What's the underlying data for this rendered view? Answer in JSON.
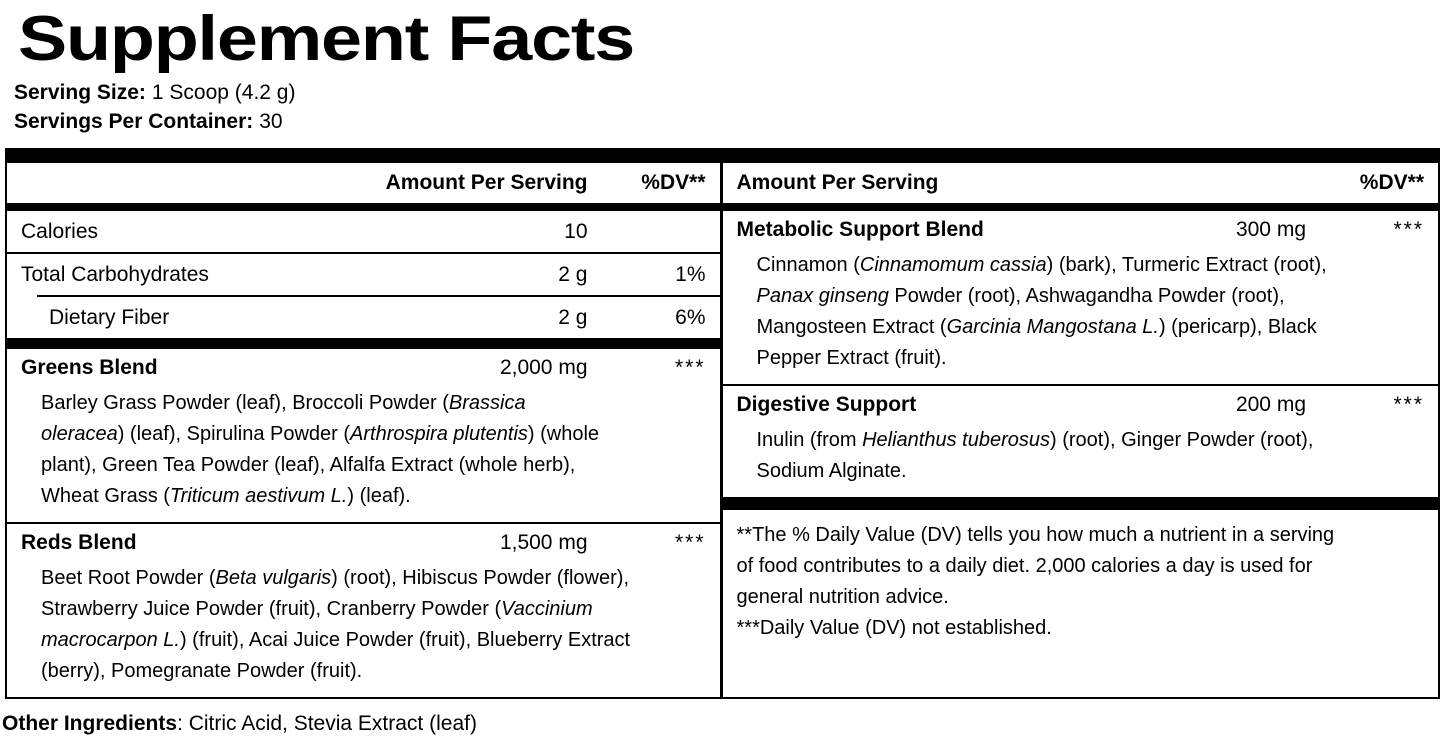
{
  "title": "Supplement Facts",
  "serving_info": {
    "size_label": "Serving Size:",
    "size_value": "1 Scoop (4.2 g)",
    "container_label": "Servings Per Container:",
    "container_value": "30"
  },
  "table": {
    "left": {
      "header": {
        "amount_label": "Amount Per Serving",
        "dv_label": "%DV**"
      },
      "nutrients": [
        {
          "name": "Calories",
          "amount": "10",
          "dv": "",
          "indent": false
        },
        {
          "name": "Total Carbohydrates",
          "amount": "2 g",
          "dv": "1%",
          "indent": false
        },
        {
          "name": "Dietary Fiber",
          "amount": "2 g",
          "dv": "6%",
          "indent": true
        }
      ],
      "blends": [
        {
          "name": "Greens Blend",
          "amount": "2,000 mg",
          "dv": "***",
          "ingredient_lines": [
            [
              {
                "t": "Barley Grass Powder (leaf), Broccoli Powder ("
              },
              {
                "t": "Brassica",
                "i": true
              }
            ],
            [
              {
                "t": "oleracea",
                "i": true
              },
              {
                "t": ") (leaf), Spirulina Powder ("
              },
              {
                "t": "Arthrospira plutentis",
                "i": true
              },
              {
                "t": ") (whole"
              }
            ],
            [
              {
                "t": "plant), Green Tea Powder (leaf), Alfalfa Extract (whole herb),"
              }
            ],
            [
              {
                "t": "Wheat Grass ("
              },
              {
                "t": "Triticum aestivum L.",
                "i": true
              },
              {
                "t": ") (leaf)."
              }
            ]
          ]
        },
        {
          "name": "Reds Blend",
          "amount": "1,500 mg",
          "dv": "***",
          "ingredient_lines": [
            [
              {
                "t": "Beet Root Powder ("
              },
              {
                "t": "Beta vulgaris",
                "i": true
              },
              {
                "t": ") (root), Hibiscus Powder (flower),"
              }
            ],
            [
              {
                "t": "Strawberry Juice Powder (fruit), Cranberry Powder ("
              },
              {
                "t": "Vaccinium",
                "i": true
              }
            ],
            [
              {
                "t": "macrocarpon L.",
                "i": true
              },
              {
                "t": ") (fruit), Acai Juice Powder (fruit), Blueberry Extract"
              }
            ],
            [
              {
                "t": "(berry), Pomegranate Powder (fruit)."
              }
            ]
          ]
        }
      ]
    },
    "right": {
      "header": {
        "amount_label": "Amount Per Serving",
        "dv_label": "%DV**"
      },
      "blends": [
        {
          "name": "Metabolic Support Blend",
          "amount": "300 mg",
          "dv": "***",
          "ingredient_lines": [
            [
              {
                "t": "Cinnamon ("
              },
              {
                "t": "Cinnamomum cassia",
                "i": true
              },
              {
                "t": ") (bark), Turmeric Extract (root),"
              }
            ],
            [
              {
                "t": "Panax ginseng",
                "i": true
              },
              {
                "t": " Powder (root), Ashwagandha Powder (root),"
              }
            ],
            [
              {
                "t": "Mangosteen Extract ("
              },
              {
                "t": "Garcinia Mangostana L.",
                "i": true
              },
              {
                "t": ") (pericarp), Black"
              }
            ],
            [
              {
                "t": "Pepper Extract (fruit)."
              }
            ]
          ]
        },
        {
          "name": "Digestive Support",
          "amount": "200 mg",
          "dv": "***",
          "ingredient_lines": [
            [
              {
                "t": "Inulin (from "
              },
              {
                "t": "Helianthus tuberosus",
                "i": true
              },
              {
                "t": ") (root), Ginger Powder (root),"
              }
            ],
            [
              {
                "t": "Sodium Alginate."
              }
            ]
          ]
        }
      ],
      "footnotes": [
        {
          "lines": [
            "**The % Daily Value (DV) tells you how much a nutrient in a serving",
            "of food contributes to a daily diet. 2,000 calories a day is used for",
            "general nutrition advice."
          ]
        },
        {
          "lines": [
            "***Daily Value (DV) not established."
          ]
        }
      ]
    }
  },
  "other_ingredients": {
    "label": "Other Ingredients",
    "rest": ": Citric Acid, Stevia Extract (leaf)"
  },
  "colors": {
    "ink": "#000000",
    "background": "#ffffff"
  }
}
